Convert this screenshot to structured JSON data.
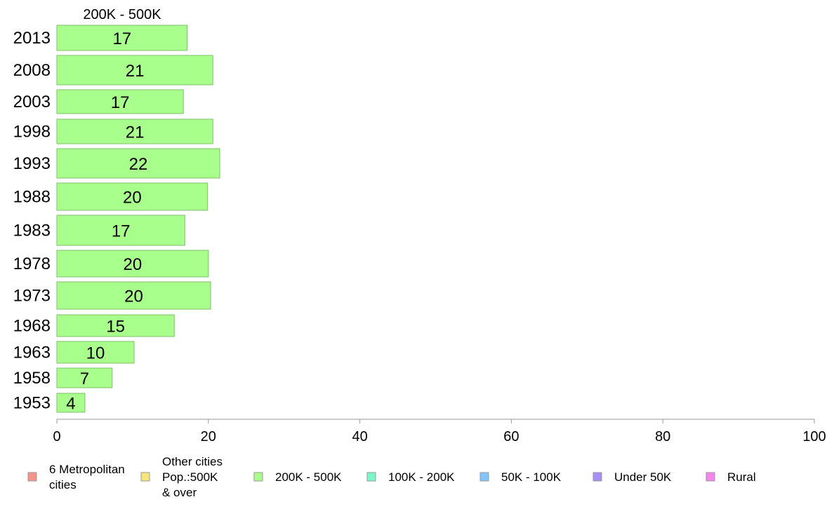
{
  "chart_data": {
    "type": "bar",
    "orientation": "horizontal",
    "title": "200K - 500K",
    "xlabel": "",
    "ylabel": "",
    "xlim": [
      0,
      100
    ],
    "xticks": [
      "0",
      "20",
      "40",
      "60",
      "80",
      "100"
    ],
    "grid": false,
    "categories": [
      "2013",
      "2008",
      "2003",
      "1998",
      "1993",
      "1988",
      "1983",
      "1978",
      "1973",
      "1968",
      "1963",
      "1958",
      "1953"
    ],
    "series": [
      {
        "name": "200K - 500K",
        "values": [
          17.2,
          20.6,
          16.7,
          20.6,
          21.5,
          19.9,
          16.9,
          20.0,
          20.3,
          15.5,
          10.2,
          7.3,
          3.7
        ],
        "labels": [
          "17",
          "21",
          "17",
          "21",
          "22",
          "20",
          "17",
          "20",
          "20",
          "15",
          "10",
          "7",
          "4"
        ],
        "color": "#a8ff8c"
      }
    ],
    "legend": {
      "placement": "bottom",
      "items": [
        {
          "lines": [
            "6 Metropolitan",
            " cities"
          ],
          "color": "#f7948a"
        },
        {
          "lines": [
            "Other cities",
            "Pop.:500K",
            " & over"
          ],
          "color": "#f7e57c"
        },
        {
          "lines": [
            "200K - 500K"
          ],
          "color": "#a8ff8c"
        },
        {
          "lines": [
            "100K - 200K"
          ],
          "color": "#7cf7c8"
        },
        {
          "lines": [
            "50K - 100K"
          ],
          "color": "#84c4fc"
        },
        {
          "lines": [
            "Under 50K"
          ],
          "color": "#a88cf7"
        },
        {
          "lines": [
            "Rural"
          ],
          "color": "#f784f0"
        }
      ]
    }
  }
}
